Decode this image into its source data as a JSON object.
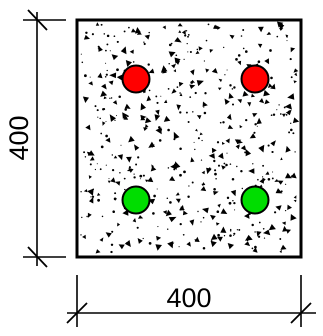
{
  "dimensions": {
    "height_label": "400",
    "width_label": "400"
  },
  "section": {
    "fill_pattern": "concrete-speckle",
    "outline_color": "#000000",
    "background_color": "#ffffff"
  },
  "bars": [
    {
      "name": "top-left-bar",
      "color": "#ff0000"
    },
    {
      "name": "top-right-bar",
      "color": "#ff0000"
    },
    {
      "name": "bottom-left-bar",
      "color": "#00dd00"
    },
    {
      "name": "bottom-right-bar",
      "color": "#00dd00"
    }
  ]
}
